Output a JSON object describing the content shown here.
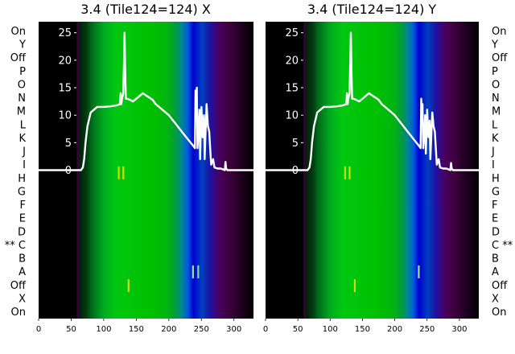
{
  "chart_data": [
    {
      "type": "line",
      "title": "3.4 (Tile124=124) X",
      "xlabel": "",
      "ylabel": "",
      "xlim": [
        0,
        330
      ],
      "ylim": [
        -27,
        27
      ],
      "x_ticks": [
        0,
        50,
        100,
        150,
        200,
        250,
        300
      ],
      "y_ticks": [
        0,
        5,
        10,
        15,
        20,
        25
      ],
      "row_labels": [
        "On",
        "Y",
        "Off",
        "P",
        "O",
        "N",
        "M",
        "L",
        "K",
        "J",
        "I",
        "H",
        "G",
        "F",
        "E",
        "D",
        "** C",
        "B",
        "A",
        "Off",
        "X",
        "On"
      ],
      "grid": false,
      "series": [
        {
          "x": [
            0,
            60,
            65,
            68,
            70,
            72,
            75,
            78,
            80,
            85,
            90,
            100,
            110,
            120,
            125,
            126,
            127,
            128,
            130,
            131,
            132,
            133,
            134,
            136,
            140,
            145,
            150,
            155,
            160,
            165,
            170,
            175,
            180,
            190,
            200,
            210,
            220,
            230,
            237,
            240,
            241,
            242,
            243,
            244,
            246,
            247,
            248,
            250,
            252,
            254,
            255,
            258,
            260,
            262,
            265,
            268,
            270,
            275,
            280,
            286,
            287,
            288,
            290,
            300,
            310,
            320,
            330
          ],
          "y": [
            0,
            0,
            0,
            0.5,
            2,
            5,
            8,
            9.5,
            10.5,
            11,
            11.5,
            11.5,
            11.6,
            11.8,
            12,
            14,
            12,
            13,
            14,
            19,
            25,
            18,
            13,
            13,
            12.8,
            12.5,
            13,
            13.5,
            14,
            13.6,
            13.2,
            12.8,
            12,
            11,
            10,
            8.5,
            7,
            5.5,
            4.5,
            4,
            14.5,
            10,
            15,
            4,
            8,
            11,
            2,
            11.5,
            6,
            10,
            2,
            12,
            8,
            7,
            1,
            2,
            0.5,
            0.3,
            0.3,
            0,
            1.5,
            0.3,
            0,
            0,
            0,
            0,
            0
          ]
        }
      ],
      "markers": [
        {
          "x": 123,
          "y": -0.5,
          "color": "#c8dc14"
        },
        {
          "x": 130,
          "y": -0.5,
          "color": "#d2dc0a"
        },
        {
          "x": 237,
          "y": -18.5,
          "color": "#a0e6a0"
        },
        {
          "x": 245,
          "y": -18.5,
          "color": "#78dcaa"
        },
        {
          "x": 138,
          "y": -21,
          "color": "#d2dc0a"
        }
      ]
    },
    {
      "type": "line",
      "title": "3.4 (Tile124=124) Y",
      "xlabel": "",
      "ylabel": "",
      "xlim": [
        0,
        330
      ],
      "ylim": [
        -27,
        27
      ],
      "x_ticks": [
        0,
        50,
        100,
        150,
        200,
        250,
        300
      ],
      "y_ticks": [
        0,
        5,
        10,
        15,
        20,
        25
      ],
      "row_labels": [
        "On",
        "Y",
        "Off",
        "P",
        "O",
        "N",
        "M",
        "L",
        "K",
        "J",
        "I",
        "H",
        "G",
        "F",
        "E",
        "D",
        "C **",
        "B",
        "A",
        "Off",
        "X",
        "On"
      ],
      "grid": false,
      "series": [
        {
          "x": [
            0,
            60,
            65,
            68,
            70,
            72,
            75,
            78,
            80,
            85,
            90,
            100,
            110,
            120,
            125,
            126,
            127,
            128,
            130,
            131,
            132,
            133,
            134,
            136,
            140,
            145,
            150,
            155,
            160,
            165,
            170,
            175,
            180,
            190,
            200,
            210,
            220,
            230,
            237,
            240,
            241,
            242,
            243,
            244,
            246,
            247,
            248,
            250,
            252,
            254,
            255,
            258,
            260,
            262,
            265,
            268,
            270,
            275,
            280,
            286,
            287,
            288,
            290,
            300,
            310,
            320,
            330
          ],
          "y": [
            0,
            0,
            0,
            0.5,
            2,
            5,
            8,
            9.5,
            10.5,
            11,
            11.5,
            11.5,
            11.6,
            11.8,
            12,
            14,
            12,
            13,
            14,
            19,
            25,
            18,
            13,
            13,
            12.8,
            12.5,
            13,
            13.5,
            14,
            13.6,
            13.2,
            12.8,
            12,
            11,
            10,
            8.5,
            7,
            5.5,
            4.5,
            4,
            13,
            9,
            12,
            4,
            7,
            10,
            3,
            11,
            6,
            9,
            2,
            10.5,
            8,
            7,
            1,
            2,
            0.5,
            0.3,
            0.3,
            0,
            1.3,
            0.3,
            0,
            0,
            0,
            0,
            0
          ]
        }
      ],
      "markers": [
        {
          "x": 123,
          "y": -0.5,
          "color": "#c8dc14"
        },
        {
          "x": 130,
          "y": -0.5,
          "color": "#d2dc0a"
        },
        {
          "x": 237,
          "y": -18.5,
          "color": "#a0e6a0"
        },
        {
          "x": 138,
          "y": -21,
          "color": "#d2dc0a"
        }
      ]
    }
  ],
  "colors": {
    "curve": "#ffffff",
    "background": "#ffffff",
    "text": "#000000",
    "tick_text_light": "#ffffff"
  }
}
